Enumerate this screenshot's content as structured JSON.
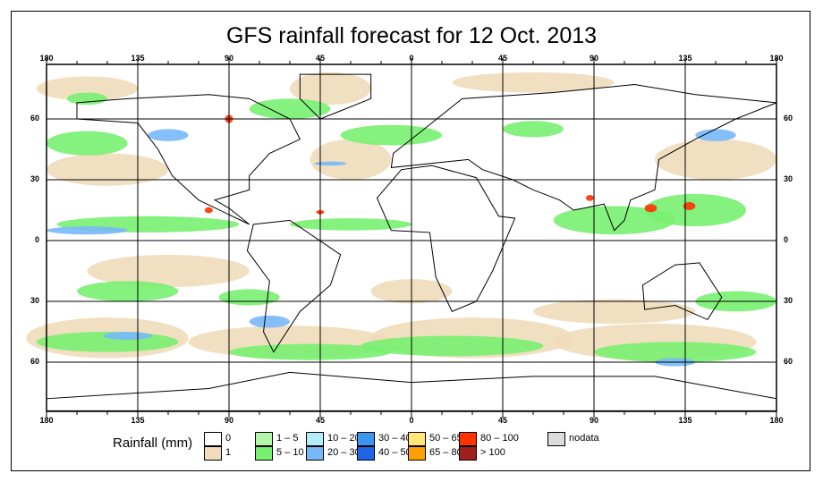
{
  "title": "GFS rainfall forecast for 12 Oct. 2013",
  "axes": {
    "lon_labels": [
      "180",
      "135",
      "90",
      "45",
      "0",
      "45",
      "90",
      "135",
      "180"
    ],
    "lat_labels": [
      "60",
      "30",
      "0",
      "30",
      "60"
    ]
  },
  "legend": {
    "title": "Rainfall (mm)",
    "items": [
      {
        "label": "0",
        "color": "#ffffff"
      },
      {
        "label": "1",
        "color": "#f0dcba"
      },
      {
        "label": "1 – 5",
        "color": "#b4f5a8"
      },
      {
        "label": "5 – 10",
        "color": "#78f070"
      },
      {
        "label": "10 – 20",
        "color": "#b4ecf8"
      },
      {
        "label": "20 – 30",
        "color": "#78b8f8"
      },
      {
        "label": "30 – 40",
        "color": "#3c96f0"
      },
      {
        "label": "40 – 50",
        "color": "#1e64e6"
      },
      {
        "label": "50 – 65",
        "color": "#ffe678"
      },
      {
        "label": "65 – 80",
        "color": "#ffa000"
      },
      {
        "label": "80 – 100",
        "color": "#ff3200"
      },
      {
        "label": "> 100",
        "color": "#a01e1e"
      },
      {
        "label": "nodata",
        "color": "#dcdcdc"
      }
    ]
  }
}
